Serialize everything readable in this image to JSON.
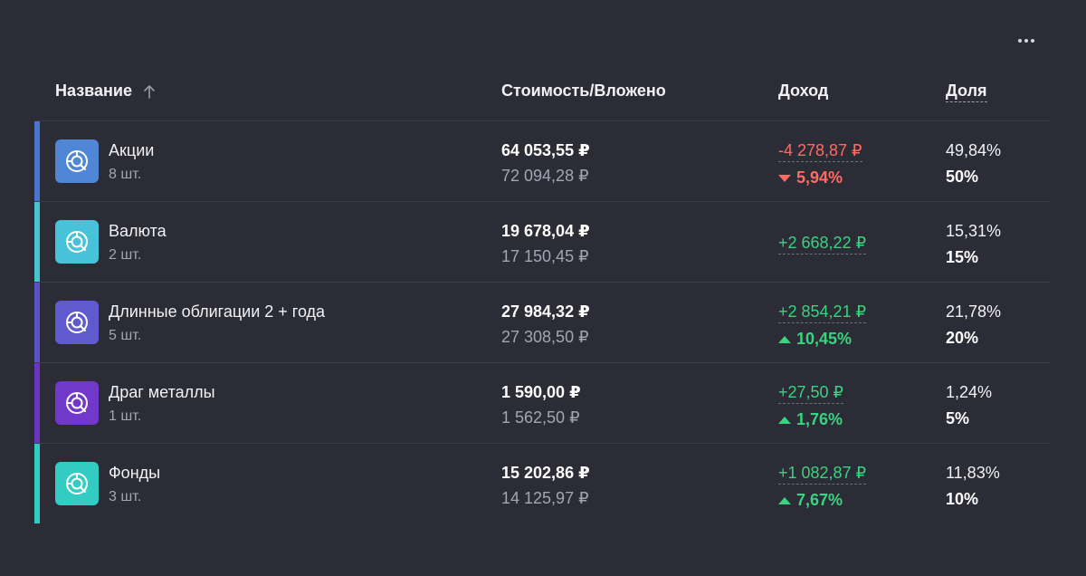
{
  "header": {
    "name": "Название",
    "value": "Стоимость/Вложено",
    "income": "Доход",
    "share": "Доля"
  },
  "colors": {
    "background": "#2b2c36",
    "positive": "#3bd37f",
    "negative": "#ff6b63"
  },
  "rows": [
    {
      "name": "Акции",
      "count": "8 шт.",
      "value": "64 053,55 ₽",
      "invested": "72 094,28 ₽",
      "income": "-4 278,87 ₽",
      "income_pct": "5,94%",
      "direction": "down",
      "share": "49,84%",
      "target": "50%",
      "accent": "#4b74d1",
      "icon_bg": "#4f86d6",
      "icon": "portfolio-icon"
    },
    {
      "name": "Валюта",
      "count": "2 шт.",
      "value": "19 678,04 ₽",
      "invested": "17 150,45 ₽",
      "income": "+2 668,22 ₽",
      "income_pct": "",
      "direction": "none",
      "share": "15,31%",
      "target": "15%",
      "accent": "#45c6cf",
      "icon_bg": "#48c2d8",
      "icon": "portfolio-icon"
    },
    {
      "name": "Длинные облигации 2 + года",
      "count": "5 шт.",
      "value": "27 984,32 ₽",
      "invested": "27 308,50 ₽",
      "income": "+2 854,21 ₽",
      "income_pct": "10,45%",
      "direction": "up",
      "share": "21,78%",
      "target": "20%",
      "accent": "#5755c6",
      "icon_bg": "#5f5bcf",
      "icon": "portfolio-icon"
    },
    {
      "name": "Драг металлы",
      "count": "1 шт.",
      "value": "1 590,00 ₽",
      "invested": "1 562,50 ₽",
      "income": "+27,50 ₽",
      "income_pct": "1,76%",
      "direction": "up",
      "share": "1,24%",
      "target": "5%",
      "accent": "#6a34c4",
      "icon_bg": "#7238cc",
      "icon": "portfolio-icon"
    },
    {
      "name": "Фонды",
      "count": "3 шт.",
      "value": "15 202,86 ₽",
      "invested": "14 125,97 ₽",
      "income": "+1 082,87 ₽",
      "income_pct": "7,67%",
      "direction": "up",
      "share": "11,83%",
      "target": "10%",
      "accent": "#2fcdc1",
      "icon_bg": "#33ccc3",
      "icon": "portfolio-icon"
    }
  ]
}
